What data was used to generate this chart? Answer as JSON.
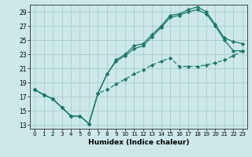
{
  "xlabel": "Humidex (Indice chaleur)",
  "bg_color": "#cce8e8",
  "grid_color": "#aacccc",
  "line_color": "#1a7a6a",
  "xlim": [
    -0.5,
    23.5
  ],
  "ylim": [
    12.5,
    30.0
  ],
  "xticks": [
    0,
    1,
    2,
    3,
    4,
    5,
    6,
    7,
    8,
    9,
    10,
    11,
    12,
    13,
    14,
    15,
    16,
    17,
    18,
    19,
    20,
    21,
    22,
    23
  ],
  "yticks": [
    13,
    15,
    17,
    19,
    21,
    23,
    25,
    27,
    29
  ],
  "line1_y": [
    18.0,
    17.3,
    16.7,
    15.5,
    14.3,
    14.3,
    13.2,
    17.5,
    20.2,
    22.2,
    23.0,
    24.2,
    24.5,
    25.8,
    27.0,
    28.5,
    28.7,
    29.3,
    29.7,
    29.0,
    27.2,
    25.3,
    24.8,
    24.5
  ],
  "line2_y": [
    18.0,
    17.3,
    16.7,
    15.5,
    14.3,
    14.3,
    13.2,
    17.5,
    20.2,
    22.0,
    22.8,
    23.8,
    24.2,
    25.5,
    26.8,
    28.2,
    28.5,
    29.0,
    29.3,
    28.7,
    27.0,
    25.0,
    23.5,
    23.5
  ],
  "line3_y": [
    18.0,
    17.3,
    16.7,
    15.5,
    14.3,
    14.3,
    13.2,
    17.5,
    18.0,
    18.8,
    19.5,
    20.2,
    20.8,
    21.5,
    22.0,
    22.5,
    21.3,
    21.3,
    21.3,
    21.5,
    21.8,
    22.2,
    22.8,
    23.5
  ]
}
